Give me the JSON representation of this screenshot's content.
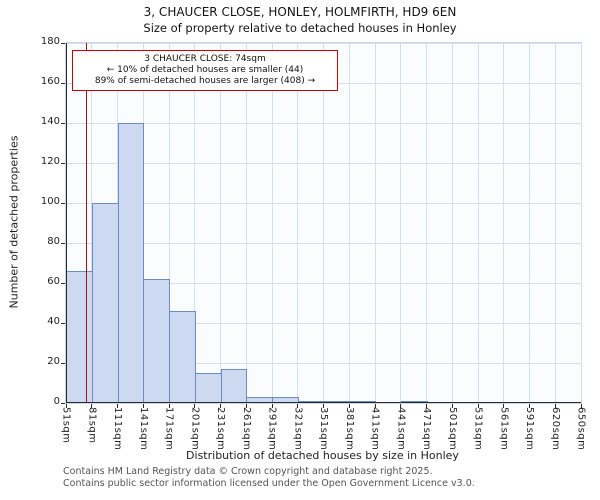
{
  "title": "3, CHAUCER CLOSE, HONLEY, HOLMFIRTH, HD9 6EN",
  "subtitle": "Size of property relative to detached houses in Honley",
  "chart_data": {
    "type": "bar",
    "title": "3, CHAUCER CLOSE, HONLEY, HOLMFIRTH, HD9 6EN — Size of property relative to detached houses in Honley",
    "xlabel": "Distribution of detached houses by size in Honley",
    "ylabel": "Number of detached properties",
    "bin_edges_sqm": [
      51,
      81,
      111,
      141,
      171,
      201,
      231,
      261,
      291,
      321,
      351,
      381,
      411,
      441,
      471,
      501,
      531,
      561,
      591,
      620,
      650
    ],
    "x_tick_labels": [
      "51sqm",
      "81sqm",
      "111sqm",
      "141sqm",
      "171sqm",
      "201sqm",
      "231sqm",
      "261sqm",
      "291sqm",
      "321sqm",
      "351sqm",
      "381sqm",
      "411sqm",
      "441sqm",
      "471sqm",
      "501sqm",
      "531sqm",
      "561sqm",
      "591sqm",
      "620sqm",
      "650sqm"
    ],
    "values": [
      66,
      100,
      140,
      62,
      46,
      15,
      17,
      3,
      3,
      1,
      1,
      1,
      0,
      1,
      0,
      0,
      0,
      0,
      0,
      0
    ],
    "yticks": [
      0,
      20,
      40,
      60,
      80,
      100,
      120,
      140,
      160,
      180
    ],
    "ylim": [
      0,
      180
    ],
    "grid": true,
    "legend": "none",
    "bar_fill": "#cdd9f0",
    "bar_border": "#6d8cc7",
    "marker": {
      "value_sqm": 74,
      "color": "#a11212"
    },
    "annotation": {
      "border_color": "#cc0000",
      "lines": [
        "3 CHAUCER CLOSE: 74sqm",
        "← 10% of detached houses are smaller (44)",
        "89% of semi-detached houses are larger (408) →"
      ]
    }
  },
  "footer": {
    "line1": "Contains HM Land Registry data © Crown copyright and database right 2025.",
    "line2": "Contains public sector information licensed under the Open Government Licence v3.0."
  }
}
